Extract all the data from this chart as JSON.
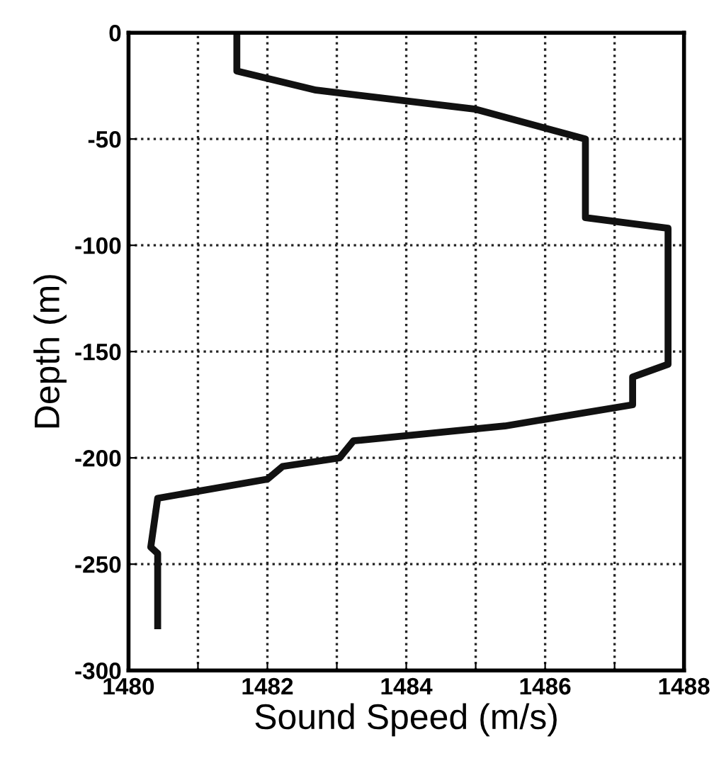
{
  "chart_data": {
    "type": "line",
    "xlabel": "Sound Speed (m/s)",
    "ylabel": "Depth (m)",
    "series": [
      {
        "color": "#111111",
        "x": [
          1481.56,
          1481.56,
          1482.7,
          1485.0,
          1486.58,
          1486.58,
          1487.77,
          1487.77,
          1487.26,
          1487.26,
          1485.42,
          1483.24,
          1483.04,
          1482.22,
          1482.0,
          1480.42,
          1480.32,
          1480.42,
          1480.42
        ],
        "values": [
          0,
          -18,
          -27,
          -36,
          -50,
          -87,
          -92,
          -156,
          -162,
          -175,
          -185,
          -192,
          -200,
          -204,
          -210,
          -219,
          -242,
          -245,
          -279
        ]
      }
    ],
    "xlim": [
      1480,
      1488
    ],
    "ylim": [
      -300,
      0
    ],
    "xticks": [
      1480,
      {
        "value": 1481,
        "label": null
      },
      1482,
      {
        "value": 1483,
        "label": null
      },
      1484,
      {
        "value": 1485,
        "label": null
      },
      1486,
      {
        "value": 1487,
        "label": null
      },
      1488
    ],
    "yticks": [
      -300,
      -250,
      -200,
      -150,
      -100,
      -50,
      0
    ],
    "grid": true,
    "marker": "none",
    "line_style": "solid"
  }
}
